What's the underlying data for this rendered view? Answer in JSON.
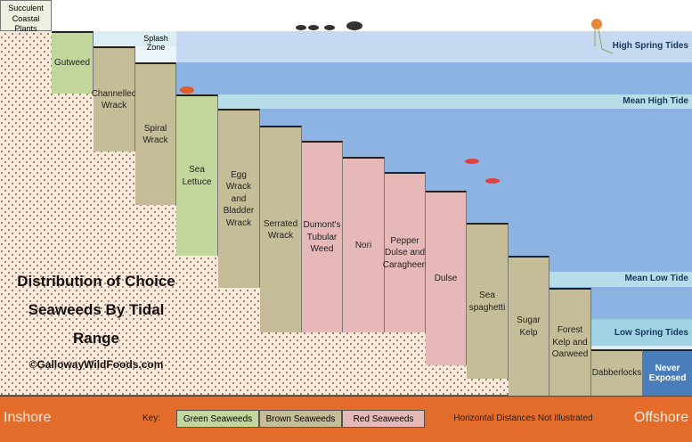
{
  "header": {
    "coastal_plants": "Succulent Coastal Plants",
    "splash_zone": "Splash Zone"
  },
  "zones": [
    {
      "label": "High Spring Tides"
    },
    {
      "label": "Mean High Tide"
    },
    {
      "label": "Mean Low Tide"
    },
    {
      "label": "Low Spring Tides"
    }
  ],
  "columns": [
    {
      "label": "Gutweed",
      "group": "green"
    },
    {
      "label": "Channelled Wrack",
      "group": "brown"
    },
    {
      "label": "Spiral Wrack",
      "group": "brown"
    },
    {
      "label": "Sea Lettuce",
      "group": "green"
    },
    {
      "label": "Egg Wrack and Bladder Wrack",
      "group": "brown"
    },
    {
      "label": "Serrated Wrack",
      "group": "brown"
    },
    {
      "label": "Dumont's Tubular Weed",
      "group": "red"
    },
    {
      "label": "Nori",
      "group": "red"
    },
    {
      "label": "Pepper Dulse and Caragheen",
      "group": "red"
    },
    {
      "label": "Dulse",
      "group": "red"
    },
    {
      "label": "Sea spaghetti",
      "group": "brown"
    },
    {
      "label": "Sugar Kelp",
      "group": "brown"
    },
    {
      "label": "Forest Kelp and Oarweed",
      "group": "brown"
    },
    {
      "label": "Dabberlocks",
      "group": "brown"
    }
  ],
  "never_exposed": "Never Exposed",
  "title": "Distribution of Choice Seaweeds By Tidal Range",
  "copyright": "©GallowayWildFoods.com",
  "footer": {
    "inshore": "Inshore",
    "key_label": "Key:",
    "key": [
      {
        "label": "Green Seaweeds",
        "group": "green"
      },
      {
        "label": "Brown Seaweeds",
        "group": "brown"
      },
      {
        "label": "Red Seaweeds",
        "group": "red"
      }
    ],
    "note": "Horizontal Distances Not Illustrated",
    "offshore": "Offshore"
  }
}
